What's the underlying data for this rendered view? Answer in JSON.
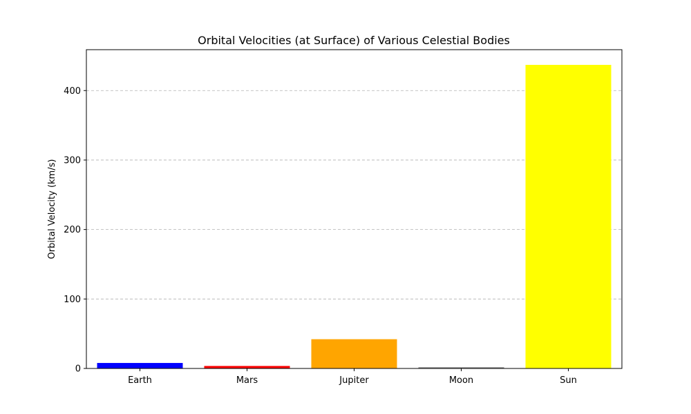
{
  "chart_data": {
    "type": "bar",
    "title": "Orbital Velocities (at Surface) of Various Celestial Bodies",
    "xlabel": "",
    "ylabel": "Orbital Velocity (km/s)",
    "categories": [
      "Earth",
      "Mars",
      "Jupiter",
      "Moon",
      "Sun"
    ],
    "values": [
      7.9,
      3.6,
      42.1,
      1.7,
      437.0
    ],
    "colors": [
      "#0000ff",
      "#ff0000",
      "#ffa500",
      "#808080",
      "#ffff00"
    ],
    "ylim": [
      0,
      458.85
    ],
    "yticks": [
      0,
      100,
      200,
      300,
      400
    ],
    "grid": "y-dashed",
    "legend": "none"
  }
}
